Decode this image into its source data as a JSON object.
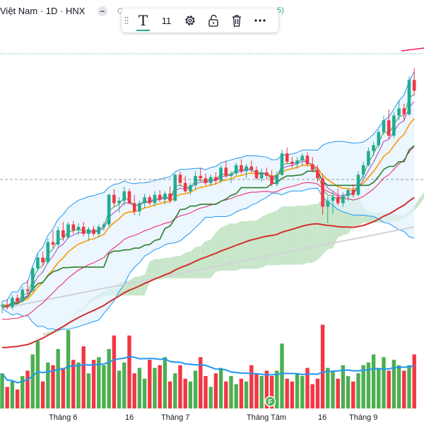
{
  "header": {
    "title": "Việt Nam · 1D · HNX",
    "extra_text": "C",
    "stray_text": "5)"
  },
  "toolbar": {
    "text_tool_icon": "T",
    "font_size": "11",
    "tools": [
      "settings-icon",
      "unlock-icon",
      "trash-icon",
      "more-icon"
    ]
  },
  "colors": {
    "up": "#22ab94",
    "down": "#f23645",
    "vol_up": "#4caf50",
    "vol_down": "#f23645",
    "ema_fast": "#ff9800",
    "ema_mid": "#e91e63",
    "ema_slow": "#d32f2f",
    "ema_long": "#cfd2d8",
    "bb": "#2196f3",
    "bb_fill": "#e3f2fd",
    "cloud_up": "#c8e6c9",
    "cloud_down": "#ffcdd2",
    "line_green": "#43a047",
    "line_dark_green": "#2e7d32",
    "line_purple": "#ab47bc",
    "vol_ma": "#2196f3"
  },
  "chart_data": {
    "type": "candlestick",
    "x_tick_labels": [
      "Tháng 6",
      "16",
      "Tháng 7",
      "Tháng Tám",
      "16",
      "Tháng 9"
    ],
    "event_marker": "F",
    "candles": [
      [
        34.2,
        34.6,
        33.6,
        34.3
      ],
      [
        34.3,
        34.8,
        33.9,
        34.1
      ],
      [
        34.1,
        35.1,
        33.9,
        34.9
      ],
      [
        34.9,
        35.2,
        34.4,
        34.6
      ],
      [
        34.6,
        35.8,
        34.5,
        35.6
      ],
      [
        35.6,
        36.4,
        35.2,
        35.5
      ],
      [
        35.5,
        37.6,
        35.4,
        37.4
      ],
      [
        37.4,
        38.6,
        37.2,
        38.3
      ],
      [
        38.3,
        38.8,
        37.6,
        37.9
      ],
      [
        37.9,
        39.9,
        37.8,
        39.6
      ],
      [
        39.6,
        40.6,
        39.1,
        39.4
      ],
      [
        39.4,
        40.9,
        39.2,
        40.6
      ],
      [
        40.6,
        41.3,
        39.7,
        40.0
      ],
      [
        40.0,
        41.3,
        39.9,
        41.1
      ],
      [
        41.1,
        41.4,
        40.3,
        40.6
      ],
      [
        40.6,
        41.2,
        40.2,
        40.9
      ],
      [
        40.9,
        41.3,
        40.1,
        40.3
      ],
      [
        40.3,
        40.9,
        39.7,
        40.7
      ],
      [
        40.7,
        41.0,
        40.1,
        40.3
      ],
      [
        40.3,
        41.1,
        40.0,
        40.9
      ],
      [
        40.9,
        41.3,
        40.6,
        41.1
      ],
      [
        41.1,
        43.7,
        40.9,
        43.6
      ],
      [
        43.6,
        44.1,
        42.6,
        42.9
      ],
      [
        42.9,
        43.4,
        42.1,
        43.1
      ],
      [
        43.1,
        44.3,
        42.7,
        43.9
      ],
      [
        43.9,
        44.1,
        42.8,
        42.9
      ],
      [
        42.9,
        43.6,
        41.9,
        42.2
      ],
      [
        42.2,
        43.1,
        41.8,
        42.9
      ],
      [
        42.9,
        43.7,
        42.5,
        43.4
      ],
      [
        43.4,
        43.6,
        42.7,
        42.9
      ],
      [
        42.9,
        43.9,
        42.6,
        43.6
      ],
      [
        43.6,
        44.0,
        43.0,
        43.2
      ],
      [
        43.2,
        43.9,
        42.8,
        43.7
      ],
      [
        43.7,
        44.3,
        42.9,
        43.1
      ],
      [
        43.1,
        45.4,
        43.0,
        45.3
      ],
      [
        45.3,
        45.6,
        44.3,
        44.6
      ],
      [
        44.6,
        45.2,
        43.8,
        43.9
      ],
      [
        43.9,
        44.6,
        43.6,
        44.4
      ],
      [
        44.4,
        45.6,
        44.0,
        45.2
      ],
      [
        45.2,
        45.9,
        44.7,
        45.0
      ],
      [
        45.0,
        45.4,
        44.4,
        44.6
      ],
      [
        44.6,
        45.3,
        44.3,
        45.1
      ],
      [
        45.1,
        45.5,
        44.5,
        44.8
      ],
      [
        44.8,
        46.1,
        44.6,
        45.9
      ],
      [
        45.9,
        46.5,
        45.0,
        45.2
      ],
      [
        45.2,
        45.6,
        44.6,
        45.4
      ],
      [
        45.4,
        46.3,
        45.2,
        46.1
      ],
      [
        46.1,
        46.6,
        45.4,
        45.6
      ],
      [
        45.6,
        46.2,
        45.0,
        46.0
      ],
      [
        46.0,
        46.5,
        45.5,
        45.7
      ],
      [
        45.7,
        46.0,
        44.9,
        45.0
      ],
      [
        45.0,
        45.8,
        44.7,
        45.5
      ],
      [
        45.5,
        45.9,
        44.9,
        45.2
      ],
      [
        45.2,
        45.7,
        44.3,
        44.5
      ],
      [
        44.5,
        45.6,
        44.3,
        45.3
      ],
      [
        45.3,
        47.4,
        45.2,
        47.1
      ],
      [
        47.1,
        47.6,
        46.2,
        46.4
      ],
      [
        46.4,
        46.8,
        45.9,
        46.2
      ],
      [
        46.2,
        46.8,
        45.8,
        46.5
      ],
      [
        46.5,
        47.1,
        46.1,
        46.9
      ],
      [
        46.9,
        47.2,
        46.0,
        46.2
      ],
      [
        46.2,
        46.8,
        45.5,
        45.7
      ],
      [
        45.7,
        46.1,
        44.7,
        45.0
      ],
      [
        45.0,
        45.4,
        41.9,
        42.6
      ],
      [
        42.6,
        43.5,
        41.2,
        43.1
      ],
      [
        43.1,
        43.9,
        42.0,
        43.4
      ],
      [
        43.4,
        44.1,
        42.7,
        42.9
      ],
      [
        42.9,
        43.8,
        42.6,
        43.5
      ],
      [
        43.5,
        44.2,
        43.1,
        44.0
      ],
      [
        44.0,
        44.5,
        43.4,
        43.6
      ],
      [
        43.6,
        45.6,
        43.5,
        45.3
      ],
      [
        45.3,
        46.4,
        45.0,
        46.1
      ],
      [
        46.1,
        47.6,
        46.0,
        47.3
      ],
      [
        47.3,
        48.1,
        46.9,
        47.8
      ],
      [
        47.8,
        49.1,
        47.6,
        48.9
      ],
      [
        48.9,
        50.3,
        48.7,
        49.9
      ],
      [
        49.9,
        50.8,
        48.3,
        48.6
      ],
      [
        48.6,
        50.6,
        48.4,
        50.3
      ],
      [
        50.3,
        51.6,
        49.9,
        50.9
      ],
      [
        50.9,
        51.3,
        49.8,
        50.4
      ],
      [
        50.4,
        53.6,
        50.3,
        53.3
      ],
      [
        53.3,
        54.3,
        52.0,
        52.4
      ]
    ],
    "volume": [
      1.3,
      0.8,
      1.0,
      0.7,
      1.2,
      1.4,
      2.0,
      2.5,
      1.0,
      1.7,
      1.6,
      2.2,
      1.5,
      2.9,
      1.8,
      1.7,
      2.3,
      1.3,
      1.8,
      1.9,
      1.6,
      2.2,
      2.7,
      1.4,
      1.7,
      2.7,
      1.3,
      1.5,
      1.1,
      1.8,
      1.5,
      1.6,
      1.9,
      1.0,
      1.3,
      1.6,
      1.1,
      1.0,
      1.4,
      1.9,
      1.2,
      0.8,
      1.3,
      1.5,
      1.0,
      1.2,
      0.9,
      1.1,
      1.0,
      1.6,
      1.3,
      1.2,
      1.4,
      1.2,
      1.4,
      2.4,
      1.1,
      1.0,
      1.3,
      1.2,
      1.5,
      0.9,
      1.1,
      3.1,
      1.5,
      1.4,
      1.1,
      1.6,
      1.2,
      1.0,
      1.3,
      1.6,
      1.7,
      2.0,
      1.5,
      1.9,
      1.4,
      1.8,
      1.6,
      1.4,
      1.6,
      2.0
    ],
    "y_range": [
      32,
      56
    ],
    "volume_range": [
      0,
      3.4
    ],
    "x_tick_indices": [
      12,
      25,
      34,
      52,
      63,
      71
    ]
  }
}
